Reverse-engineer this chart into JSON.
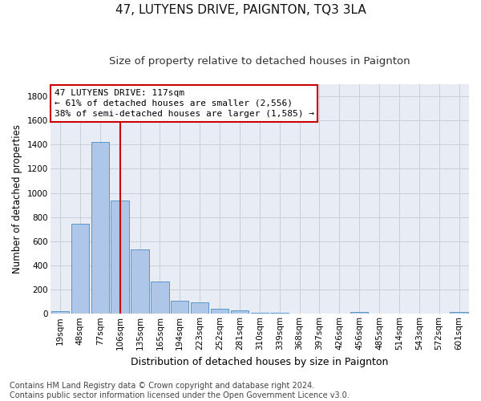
{
  "title": "47, LUTYENS DRIVE, PAIGNTON, TQ3 3LA",
  "subtitle": "Size of property relative to detached houses in Paignton",
  "xlabel": "Distribution of detached houses by size in Paignton",
  "ylabel": "Number of detached properties",
  "categories": [
    "19sqm",
    "48sqm",
    "77sqm",
    "106sqm",
    "135sqm",
    "165sqm",
    "194sqm",
    "223sqm",
    "252sqm",
    "281sqm",
    "310sqm",
    "339sqm",
    "368sqm",
    "397sqm",
    "426sqm",
    "456sqm",
    "485sqm",
    "514sqm",
    "543sqm",
    "572sqm",
    "601sqm"
  ],
  "values": [
    22,
    745,
    1420,
    940,
    535,
    265,
    105,
    95,
    40,
    27,
    10,
    10,
    5,
    2,
    2,
    12,
    2,
    2,
    2,
    2,
    12
  ],
  "bar_color": "#aec6e8",
  "bar_edge_color": "#5a96cc",
  "vline_x": 3.0,
  "vline_color": "#cc0000",
  "annotation_text": "47 LUTYENS DRIVE: 117sqm\n← 61% of detached houses are smaller (2,556)\n38% of semi-detached houses are larger (1,585) →",
  "annotation_box_color": "#cc0000",
  "annotation_text_color": "#000000",
  "ylim": [
    0,
    1900
  ],
  "yticks": [
    0,
    200,
    400,
    600,
    800,
    1000,
    1200,
    1400,
    1600,
    1800
  ],
  "grid_color": "#c8d0dc",
  "bg_color": "#e8edf5",
  "footer": "Contains HM Land Registry data © Crown copyright and database right 2024.\nContains public sector information licensed under the Open Government Licence v3.0.",
  "title_fontsize": 11,
  "subtitle_fontsize": 9.5,
  "xlabel_fontsize": 9,
  "ylabel_fontsize": 8.5,
  "tick_fontsize": 7.5,
  "footer_fontsize": 7
}
